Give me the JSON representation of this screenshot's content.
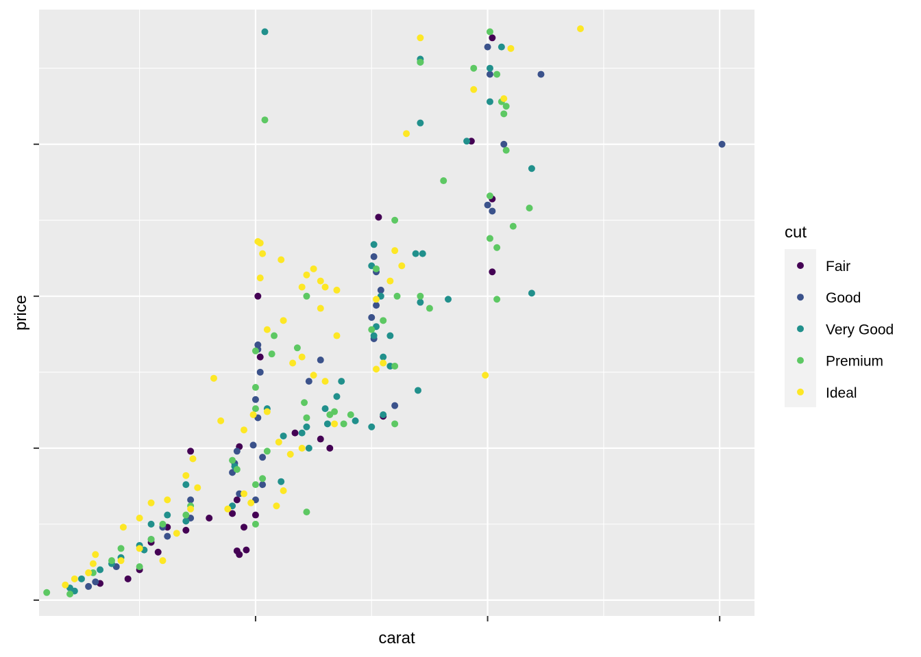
{
  "chart_data": {
    "type": "scatter",
    "title": "",
    "xlabel": "carat",
    "ylabel": "price",
    "x_tick_values": [
      1,
      2,
      3
    ],
    "x_tick_labels": [
      "",
      "",
      ""
    ],
    "y_tick_values": [
      0,
      5000,
      10000,
      15000
    ],
    "y_tick_labels": [
      "",
      "",
      "",
      ""
    ],
    "xlim": [
      0.067,
      3.15
    ],
    "ylim": [
      -520,
      19430
    ],
    "grid": true,
    "legend": {
      "title": "cut",
      "position": "right",
      "entries": [
        {
          "label": "Fair",
          "color": "#440154"
        },
        {
          "label": "Good",
          "color": "#3B528B"
        },
        {
          "label": "Very Good",
          "color": "#21908C"
        },
        {
          "label": "Premium",
          "color": "#5DC863"
        },
        {
          "label": "Ideal",
          "color": "#FDE725"
        }
      ]
    },
    "series": [
      {
        "name": "Fair",
        "color": "#440154",
        "points": [
          [
            2.02,
            18500
          ],
          [
            1.93,
            15100
          ],
          [
            2.02,
            13200
          ],
          [
            1.01,
            10000
          ],
          [
            1.02,
            8000
          ],
          [
            2.02,
            10800
          ],
          [
            1.53,
            12600
          ],
          [
            0.93,
            5050
          ],
          [
            0.72,
            4900
          ],
          [
            0.9,
            2850
          ],
          [
            0.92,
            3300
          ],
          [
            0.7,
            2300
          ],
          [
            0.62,
            2400
          ],
          [
            0.55,
            1900
          ],
          [
            0.95,
            2400
          ],
          [
            1.0,
            2800
          ],
          [
            1.28,
            5300
          ],
          [
            1.32,
            5000
          ],
          [
            1.17,
            5500
          ],
          [
            1.55,
            6050
          ],
          [
            0.92,
            1620
          ],
          [
            0.96,
            1650
          ],
          [
            0.93,
            1500
          ],
          [
            0.5,
            1000
          ],
          [
            0.45,
            700
          ],
          [
            0.33,
            550
          ],
          [
            0.58,
            1580
          ],
          [
            0.8,
            2700
          ]
        ]
      },
      {
        "name": "Good",
        "color": "#3B528B",
        "points": [
          [
            3.01,
            15000
          ],
          [
            2.0,
            18200
          ],
          [
            2.01,
            17300
          ],
          [
            2.23,
            17300
          ],
          [
            2.07,
            15000
          ],
          [
            2.0,
            13000
          ],
          [
            2.02,
            12800
          ],
          [
            1.51,
            11300
          ],
          [
            1.52,
            10800
          ],
          [
            1.54,
            10200
          ],
          [
            1.52,
            9700
          ],
          [
            1.5,
            9300
          ],
          [
            1.51,
            8600
          ],
          [
            1.6,
            6400
          ],
          [
            1.01,
            8400
          ],
          [
            1.01,
            8250
          ],
          [
            1.02,
            7500
          ],
          [
            1.0,
            6600
          ],
          [
            1.01,
            6000
          ],
          [
            1.28,
            7900
          ],
          [
            1.23,
            7200
          ],
          [
            0.92,
            4900
          ],
          [
            0.91,
            4500
          ],
          [
            0.99,
            5100
          ],
          [
            0.93,
            3500
          ],
          [
            1.03,
            3800
          ],
          [
            0.72,
            3300
          ],
          [
            0.72,
            2700
          ],
          [
            0.62,
            2100
          ],
          [
            0.55,
            2000
          ],
          [
            0.4,
            1100
          ],
          [
            0.31,
            600
          ],
          [
            0.28,
            450
          ],
          [
            0.6,
            2400
          ],
          [
            0.9,
            4200
          ],
          [
            1.03,
            4700
          ],
          [
            1.0,
            3300
          ]
        ]
      },
      {
        "name": "Very Good",
        "color": "#21908C",
        "points": [
          [
            1.04,
            18700
          ],
          [
            1.71,
            17800
          ],
          [
            1.71,
            17700
          ],
          [
            1.71,
            15700
          ],
          [
            2.01,
            17500
          ],
          [
            2.06,
            18200
          ],
          [
            2.01,
            16400
          ],
          [
            1.91,
            15100
          ],
          [
            2.19,
            14200
          ],
          [
            1.51,
            11700
          ],
          [
            1.5,
            11000
          ],
          [
            1.69,
            11400
          ],
          [
            1.72,
            11400
          ],
          [
            1.71,
            9800
          ],
          [
            2.19,
            10100
          ],
          [
            1.83,
            9900
          ],
          [
            1.54,
            10000
          ],
          [
            1.52,
            9000
          ],
          [
            1.51,
            8700
          ],
          [
            1.58,
            8700
          ],
          [
            1.55,
            8000
          ],
          [
            1.58,
            7700
          ],
          [
            1.7,
            6900
          ],
          [
            1.5,
            5700
          ],
          [
            1.55,
            6100
          ],
          [
            1.05,
            6300
          ],
          [
            1.3,
            6300
          ],
          [
            1.31,
            5800
          ],
          [
            1.43,
            5900
          ],
          [
            1.22,
            5700
          ],
          [
            1.12,
            5400
          ],
          [
            1.35,
            6700
          ],
          [
            1.37,
            7200
          ],
          [
            1.2,
            5500
          ],
          [
            0.91,
            4400
          ],
          [
            0.7,
            3800
          ],
          [
            0.7,
            2600
          ],
          [
            0.62,
            2800
          ],
          [
            0.5,
            1800
          ],
          [
            0.52,
            1650
          ],
          [
            0.38,
            1200
          ],
          [
            0.33,
            1000
          ],
          [
            0.25,
            700
          ],
          [
            0.2,
            400
          ],
          [
            0.22,
            300
          ],
          [
            1.11,
            3900
          ],
          [
            0.9,
            3100
          ],
          [
            1.23,
            5000
          ],
          [
            0.42,
            1400
          ],
          [
            0.55,
            2500
          ]
        ]
      },
      {
        "name": "Premium",
        "color": "#5DC863",
        "points": [
          [
            1.04,
            15800
          ],
          [
            1.71,
            17700
          ],
          [
            2.01,
            18700
          ],
          [
            2.04,
            17300
          ],
          [
            2.06,
            16400
          ],
          [
            2.07,
            16000
          ],
          [
            2.08,
            16250
          ],
          [
            2.08,
            14800
          ],
          [
            1.94,
            17500
          ],
          [
            1.81,
            13800
          ],
          [
            2.01,
            13300
          ],
          [
            2.18,
            12900
          ],
          [
            2.01,
            11900
          ],
          [
            2.04,
            11600
          ],
          [
            2.11,
            12300
          ],
          [
            2.04,
            9900
          ],
          [
            1.6,
            12500
          ],
          [
            1.52,
            10900
          ],
          [
            1.55,
            9200
          ],
          [
            1.61,
            10000
          ],
          [
            1.71,
            10000
          ],
          [
            1.75,
            9600
          ],
          [
            1.5,
            8900
          ],
          [
            1.6,
            7700
          ],
          [
            1.6,
            5800
          ],
          [
            1.38,
            5800
          ],
          [
            1.41,
            6100
          ],
          [
            1.22,
            10000
          ],
          [
            1.08,
            8700
          ],
          [
            1.07,
            8100
          ],
          [
            1.18,
            8300
          ],
          [
            1.0,
            8200
          ],
          [
            1.0,
            7000
          ],
          [
            1.0,
            6300
          ],
          [
            1.21,
            6500
          ],
          [
            1.22,
            6000
          ],
          [
            1.34,
            6200
          ],
          [
            1.32,
            6100
          ],
          [
            1.05,
            4900
          ],
          [
            1.03,
            4000
          ],
          [
            1.0,
            3800
          ],
          [
            0.9,
            4600
          ],
          [
            0.92,
            4300
          ],
          [
            1.22,
            2900
          ],
          [
            1.0,
            2500
          ],
          [
            0.7,
            2800
          ],
          [
            0.72,
            3100
          ],
          [
            0.55,
            2000
          ],
          [
            0.6,
            2500
          ],
          [
            0.42,
            1700
          ],
          [
            0.38,
            1300
          ],
          [
            0.3,
            900
          ],
          [
            0.2,
            200
          ],
          [
            0.1,
            250
          ],
          [
            0.5,
            1100
          ]
        ]
      },
      {
        "name": "Ideal",
        "color": "#FDE725",
        "points": [
          [
            1.71,
            18500
          ],
          [
            2.1,
            18150
          ],
          [
            2.4,
            18800
          ],
          [
            1.94,
            16800
          ],
          [
            2.07,
            16500
          ],
          [
            1.65,
            15350
          ],
          [
            1.99,
            7400
          ],
          [
            1.6,
            11500
          ],
          [
            1.63,
            11000
          ],
          [
            1.58,
            10500
          ],
          [
            1.52,
            9900
          ],
          [
            1.55,
            7800
          ],
          [
            1.52,
            7600
          ],
          [
            1.01,
            11800
          ],
          [
            1.02,
            11750
          ],
          [
            1.03,
            11400
          ],
          [
            1.11,
            11200
          ],
          [
            1.02,
            10600
          ],
          [
            1.25,
            10900
          ],
          [
            1.22,
            10700
          ],
          [
            1.28,
            10500
          ],
          [
            1.3,
            10300
          ],
          [
            1.35,
            10200
          ],
          [
            1.2,
            10300
          ],
          [
            1.28,
            9600
          ],
          [
            1.35,
            8700
          ],
          [
            1.12,
            9200
          ],
          [
            1.05,
            8900
          ],
          [
            1.2,
            8000
          ],
          [
            1.16,
            7800
          ],
          [
            1.3,
            7200
          ],
          [
            1.25,
            7400
          ],
          [
            1.05,
            6200
          ],
          [
            0.99,
            6100
          ],
          [
            0.85,
            5900
          ],
          [
            0.95,
            5600
          ],
          [
            1.1,
            5200
          ],
          [
            1.15,
            4800
          ],
          [
            1.2,
            5000
          ],
          [
            1.34,
            5800
          ],
          [
            0.82,
            7300
          ],
          [
            0.73,
            4650
          ],
          [
            0.7,
            4100
          ],
          [
            0.62,
            3300
          ],
          [
            0.55,
            3200
          ],
          [
            0.5,
            2700
          ],
          [
            0.43,
            2400
          ],
          [
            0.31,
            1500
          ],
          [
            0.3,
            1200
          ],
          [
            0.28,
            900
          ],
          [
            0.18,
            500
          ],
          [
            0.22,
            700
          ],
          [
            0.42,
            1300
          ],
          [
            0.5,
            1700
          ],
          [
            0.6,
            1300
          ],
          [
            0.95,
            3500
          ],
          [
            0.75,
            3700
          ],
          [
            0.88,
            3000
          ],
          [
            1.09,
            3100
          ],
          [
            1.12,
            3600
          ],
          [
            0.98,
            3200
          ],
          [
            0.72,
            3000
          ],
          [
            0.66,
            2200
          ]
        ]
      }
    ]
  },
  "plot": {
    "panel_bg": "#EBEBEB",
    "grid_color": "#FFFFFF"
  }
}
